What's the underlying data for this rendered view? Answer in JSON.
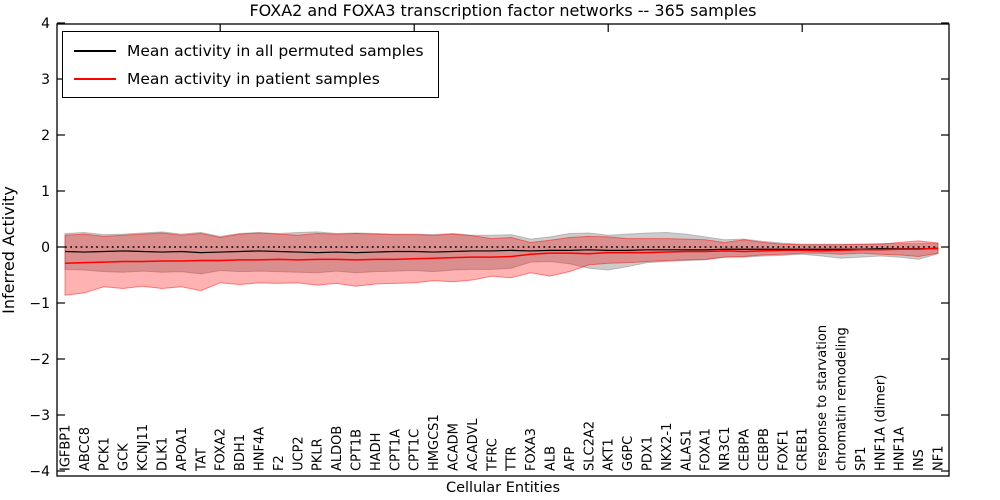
{
  "figure": {
    "title": "FOXA2 and FOXA3 transcription factor networks -- 365 samples"
  },
  "legend": {
    "entries": [
      {
        "label": "Mean activity in all permuted samples",
        "color": "#000000"
      },
      {
        "label": "Mean activity in patient samples",
        "color": "#ff0000"
      }
    ]
  },
  "chart_data": {
    "type": "line",
    "title": "FOXA2 and FOXA3 transcription factor networks -- 365 samples",
    "xlabel": "Cellular Entities",
    "ylabel": "Inferred Activity",
    "ylim": [
      -4,
      4
    ],
    "ytick_values": [
      4,
      3,
      2,
      1,
      0,
      -1,
      -2,
      -3,
      -4
    ],
    "ytick_labels": [
      "4",
      "3",
      "2",
      "1",
      "0",
      "−1",
      "−2",
      "−3",
      "−4"
    ],
    "grid": false,
    "legend_position": "upper left",
    "zero_line": {
      "y": 0,
      "style": "dotted",
      "color": "#000000"
    },
    "top_tick_indices": [
      8,
      18,
      28,
      38
    ],
    "categories": [
      "IGFBP1",
      "ABCC8",
      "PCK1",
      "GCK",
      "KCNJ11",
      "DLK1",
      "APOA1",
      "TAT",
      "FOXA2",
      "BDH1",
      "HNF4A",
      "F2",
      "UCP2",
      "PKLR",
      "ALDOB",
      "CPT1B",
      "HADH",
      "CPT1A",
      "CPT1C",
      "HMGCS1",
      "ACADM",
      "ACADVL",
      "TFRC",
      "TTR",
      "FOXA3",
      "ALB",
      "AFP",
      "SLC2A2",
      "AKT1",
      "G6PC",
      "PDX1",
      "NKX2-1",
      "ALAS1",
      "FOXA1",
      "NR3C1",
      "CEBPA",
      "CEBPB",
      "FOXF1",
      "CREB1",
      "response to starvation",
      "chromatin remodeling",
      "SP1",
      "HNF1A (dimer)",
      "HNF1A",
      "INS",
      "NF1"
    ],
    "series": [
      {
        "name": "Mean activity in all permuted samples",
        "color": "#000000",
        "band_fill": "rgba(128,128,128,0.40)",
        "band_edge": "rgba(128,128,128,0.45)",
        "values": [
          -0.08,
          -0.09,
          -0.08,
          -0.07,
          -0.08,
          -0.09,
          -0.08,
          -0.1,
          -0.09,
          -0.08,
          -0.07,
          -0.08,
          -0.09,
          -0.1,
          -0.09,
          -0.1,
          -0.09,
          -0.08,
          -0.08,
          -0.09,
          -0.08,
          -0.07,
          -0.07,
          -0.06,
          -0.07,
          -0.06,
          -0.06,
          -0.05,
          -0.06,
          -0.06,
          -0.05,
          -0.05,
          -0.05,
          -0.05,
          -0.04,
          -0.04,
          -0.04,
          -0.04,
          -0.04,
          -0.04,
          -0.04,
          -0.04,
          -0.03,
          -0.03,
          -0.03,
          -0.03
        ],
        "band_upper": [
          0.24,
          0.26,
          0.22,
          0.23,
          0.25,
          0.27,
          0.23,
          0.26,
          0.19,
          0.24,
          0.26,
          0.24,
          0.26,
          0.27,
          0.24,
          0.25,
          0.24,
          0.23,
          0.23,
          0.22,
          0.24,
          0.21,
          0.21,
          0.22,
          0.14,
          0.18,
          0.24,
          0.25,
          0.21,
          0.23,
          0.25,
          0.26,
          0.23,
          0.18,
          0.13,
          0.14,
          0.1,
          0.07,
          0.05,
          0.05,
          0.05,
          0.05,
          0.06,
          0.06,
          0.06,
          0.07
        ],
        "band_lower": [
          -0.4,
          -0.41,
          -0.44,
          -0.45,
          -0.43,
          -0.45,
          -0.44,
          -0.48,
          -0.42,
          -0.44,
          -0.43,
          -0.44,
          -0.45,
          -0.46,
          -0.43,
          -0.46,
          -0.44,
          -0.43,
          -0.42,
          -0.44,
          -0.41,
          -0.4,
          -0.4,
          -0.38,
          -0.27,
          -0.26,
          -0.3,
          -0.38,
          -0.41,
          -0.35,
          -0.28,
          -0.26,
          -0.24,
          -0.23,
          -0.18,
          -0.18,
          -0.16,
          -0.15,
          -0.13,
          -0.16,
          -0.2,
          -0.18,
          -0.16,
          -0.18,
          -0.22,
          -0.12
        ]
      },
      {
        "name": "Mean activity in patient samples",
        "color": "#ff0000",
        "band_fill": "rgba(255,0,0,0.30)",
        "band_edge": "rgba(255,0,0,0.45)",
        "values": [
          -0.29,
          -0.28,
          -0.27,
          -0.26,
          -0.26,
          -0.25,
          -0.25,
          -0.24,
          -0.24,
          -0.23,
          -0.23,
          -0.22,
          -0.23,
          -0.22,
          -0.22,
          -0.23,
          -0.22,
          -0.22,
          -0.21,
          -0.2,
          -0.19,
          -0.18,
          -0.18,
          -0.17,
          -0.13,
          -0.11,
          -0.11,
          -0.12,
          -0.1,
          -0.1,
          -0.1,
          -0.09,
          -0.08,
          -0.08,
          -0.07,
          -0.08,
          -0.07,
          -0.06,
          -0.06,
          -0.07,
          -0.06,
          -0.05,
          -0.05,
          -0.04,
          -0.04,
          -0.02
        ],
        "band_upper": [
          0.21,
          0.23,
          0.19,
          0.21,
          0.23,
          0.25,
          0.21,
          0.24,
          0.17,
          0.23,
          0.25,
          0.23,
          0.21,
          0.24,
          0.23,
          0.24,
          0.23,
          0.22,
          0.22,
          0.21,
          0.23,
          0.2,
          0.15,
          0.17,
          0.08,
          0.12,
          0.17,
          0.19,
          0.18,
          0.15,
          0.15,
          0.15,
          0.14,
          0.13,
          0.08,
          0.13,
          0.08,
          0.05,
          0.04,
          0.04,
          0.04,
          0.05,
          0.05,
          0.08,
          0.11,
          0.07
        ],
        "band_lower": [
          -0.86,
          -0.82,
          -0.71,
          -0.74,
          -0.7,
          -0.74,
          -0.71,
          -0.78,
          -0.64,
          -0.67,
          -0.64,
          -0.65,
          -0.64,
          -0.68,
          -0.65,
          -0.7,
          -0.66,
          -0.65,
          -0.64,
          -0.6,
          -0.62,
          -0.59,
          -0.52,
          -0.55,
          -0.46,
          -0.52,
          -0.44,
          -0.32,
          -0.29,
          -0.28,
          -0.26,
          -0.24,
          -0.23,
          -0.22,
          -0.18,
          -0.17,
          -0.14,
          -0.13,
          -0.11,
          -0.11,
          -0.13,
          -0.11,
          -0.13,
          -0.14,
          -0.17,
          -0.11
        ]
      }
    ]
  }
}
